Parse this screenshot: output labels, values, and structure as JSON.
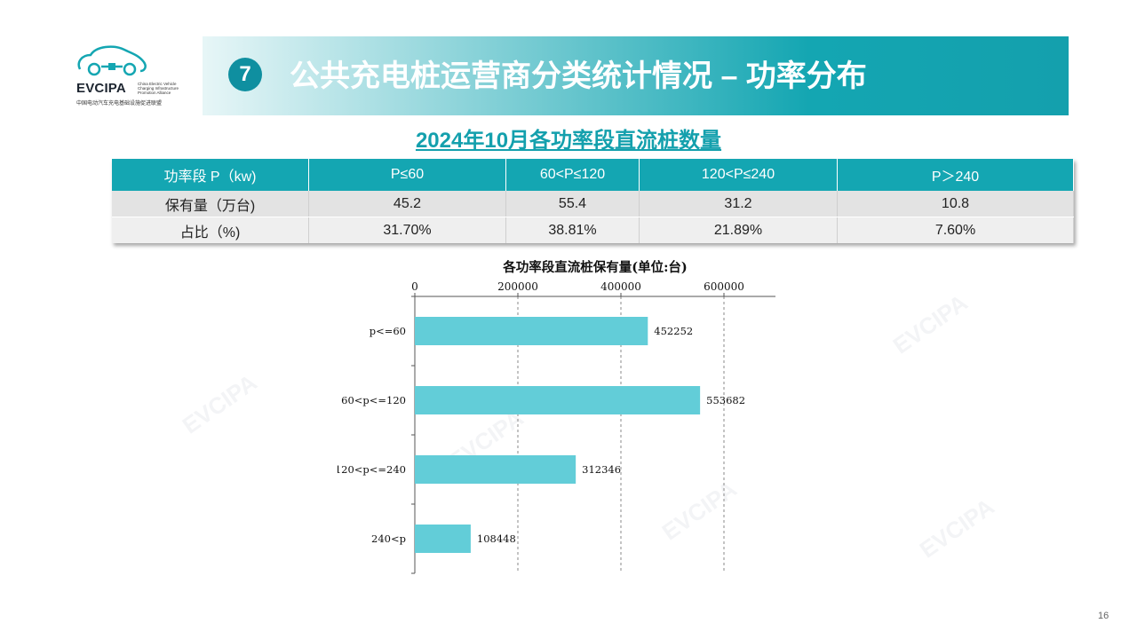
{
  "logo": {
    "brand": "EVCIPA",
    "en_lines": [
      "China Electric Vehicle",
      "Charging Infrastructure",
      "Promotion Alliance"
    ],
    "cn": "中国电动汽车充电基础设施促进联盟"
  },
  "banner": {
    "number": "7",
    "title": "公共充电桩运营商分类统计情况 – 功率分布"
  },
  "table": {
    "title": "2024年10月各功率段直流桩数量",
    "headers": [
      "功率段 P（kw)",
      "P≤60",
      "60<P≤120",
      "120<P≤240",
      "P＞240"
    ],
    "rows": [
      [
        "保有量（万台)",
        "45.2",
        "55.4",
        "31.2",
        "10.8"
      ],
      [
        "占比（%)",
        "31.70%",
        "38.81%",
        "21.89%",
        "7.60%"
      ]
    ]
  },
  "chart_data": {
    "type": "bar",
    "orientation": "horizontal",
    "title": "各功率段直流桩保有量(单位:台)",
    "categories": [
      "p<=60",
      "60<p<=120",
      "120<p<=240",
      "240<p"
    ],
    "values": [
      452252,
      553682,
      312346,
      108448
    ],
    "xlim": [
      0,
      700000
    ],
    "xticks": [
      0,
      200000,
      400000,
      600000
    ],
    "xlabel": "",
    "ylabel": "",
    "grid": "dashed vertical",
    "bar_color": "#62cdd8"
  },
  "watermark": "EVCIPA",
  "page_number": "16"
}
